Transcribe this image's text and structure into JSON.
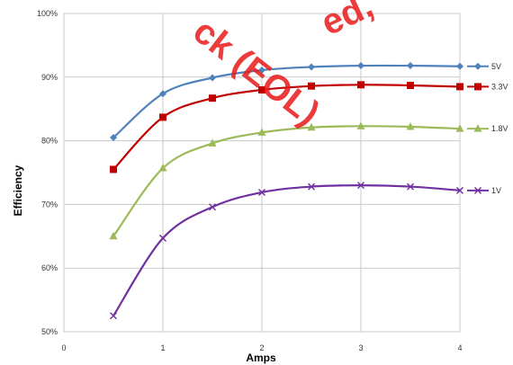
{
  "chart_data": {
    "type": "line",
    "title": "",
    "xlabel": "Amps",
    "ylabel": "Efficiency",
    "xlim": [
      0,
      4
    ],
    "ylim": [
      50,
      100
    ],
    "x_ticks": [
      0,
      1,
      2,
      3,
      4
    ],
    "x_tick_labels": [
      "0",
      "1",
      "2",
      "3",
      "4"
    ],
    "y_ticks": [
      50,
      60,
      70,
      80,
      90,
      100
    ],
    "y_tick_labels": [
      "50%",
      "60%",
      "70%",
      "80%",
      "90%",
      "100%"
    ],
    "grid": true,
    "legend_position": "right (labels at line ends)",
    "x": [
      0.5,
      1.0,
      1.5,
      2.0,
      2.5,
      3.0,
      3.5,
      4.0
    ],
    "series": [
      {
        "name": "5V",
        "color": "#4f81bd",
        "marker": "diamond",
        "values": [
          80.5,
          87.4,
          89.9,
          91.1,
          91.6,
          91.8,
          91.8,
          91.7
        ]
      },
      {
        "name": "3.3V",
        "color": "#c00000",
        "marker": "square",
        "values": [
          75.5,
          83.7,
          86.7,
          88.0,
          88.6,
          88.8,
          88.7,
          88.5
        ]
      },
      {
        "name": "1.8V",
        "color": "#9bbb59",
        "marker": "triangle",
        "values": [
          65.0,
          75.7,
          79.6,
          81.3,
          82.1,
          82.3,
          82.2,
          81.9
        ]
      },
      {
        "name": "1V",
        "color": "#7030a0",
        "marker": "x",
        "values": [
          52.5,
          64.7,
          69.6,
          71.9,
          72.8,
          73.0,
          72.8,
          72.2
        ]
      }
    ],
    "watermark": {
      "line1": "ed,",
      "line2": "ck (EOL)",
      "color": "#e81a1a"
    }
  }
}
